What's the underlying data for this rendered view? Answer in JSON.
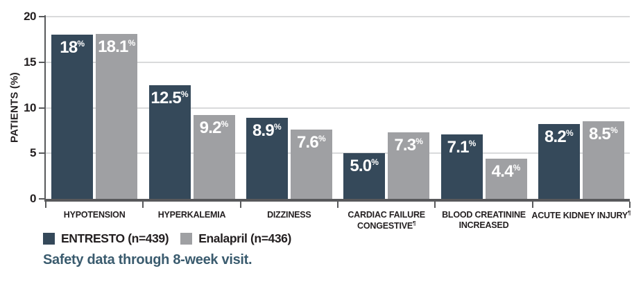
{
  "chart_data": {
    "type": "bar",
    "title": "",
    "ylabel": "PATIENTS (%)",
    "ylim": [
      0,
      20
    ],
    "yticks": [
      0,
      5,
      10,
      15,
      20
    ],
    "grid": "horizontal",
    "legend_position": "bottom-left",
    "categories": [
      {
        "lines": [
          "HYPOTENSION"
        ],
        "sup": ""
      },
      {
        "lines": [
          "HYPERKALEMIA"
        ],
        "sup": ""
      },
      {
        "lines": [
          "DIZZINESS"
        ],
        "sup": ""
      },
      {
        "lines": [
          "CARDIAC FAILURE",
          "CONGESTIVE"
        ],
        "sup": "¶"
      },
      {
        "lines": [
          "BLOOD CREATININE",
          "INCREASED"
        ],
        "sup": ""
      },
      {
        "lines": [
          "ACUTE KIDNEY INJURY"
        ],
        "sup": "¶"
      }
    ],
    "series": [
      {
        "name": "ENTRESTO (n=439)",
        "color": "#35495a",
        "values": [
          18,
          12.5,
          8.9,
          5.0,
          7.1,
          8.2
        ],
        "labels": [
          "18",
          "12.5",
          "8.9",
          "5.0",
          "7.1",
          "8.2"
        ],
        "unit": "%"
      },
      {
        "name": "Enalapril (n=436)",
        "color": "#9fa0a3",
        "values": [
          18.1,
          9.2,
          7.6,
          7.3,
          4.4,
          8.5
        ],
        "labels": [
          "18.1",
          "9.2",
          "7.6",
          "7.3",
          "4.4",
          "8.5"
        ],
        "unit": "%"
      }
    ],
    "footnote": "Safety data through 8-week visit."
  },
  "colors": {
    "axis": "#58595b",
    "gridline": "#d9dadb",
    "text": "#231f20",
    "footnote": "#3a5b6e",
    "bar_label": "#ffffff"
  }
}
